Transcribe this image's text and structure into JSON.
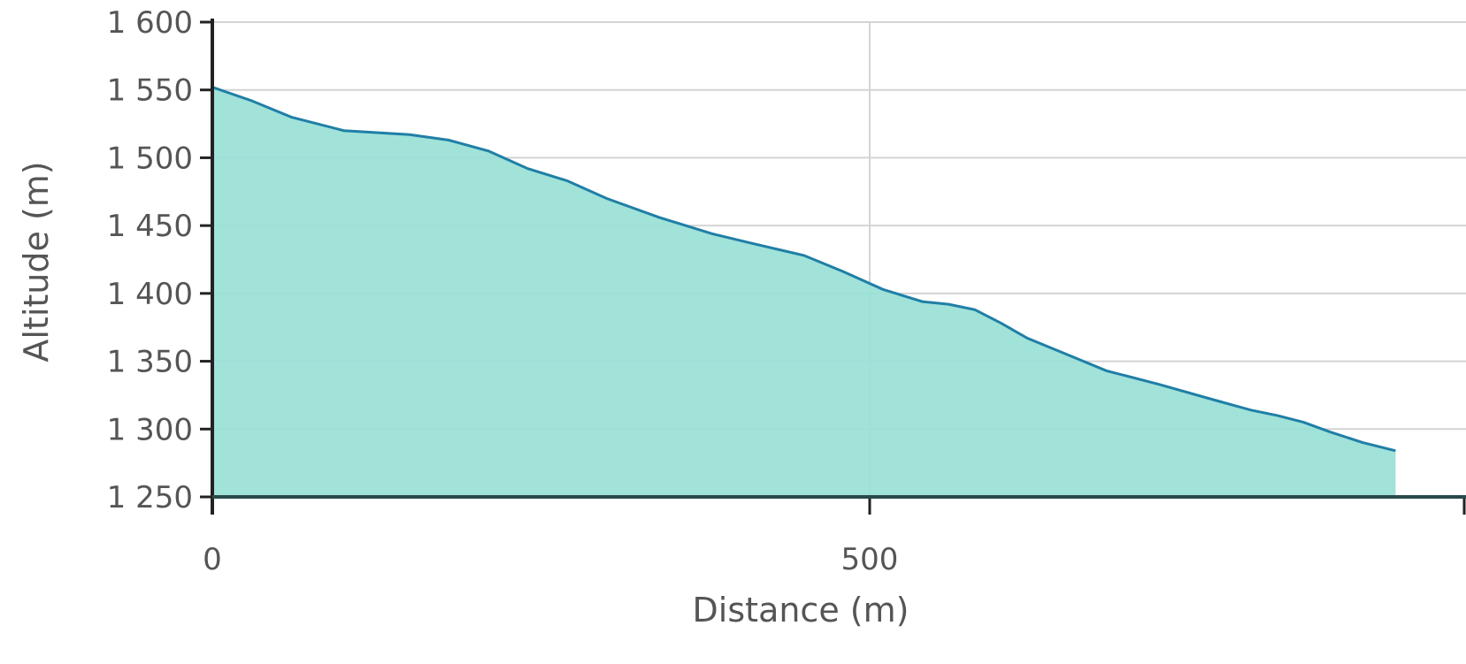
{
  "chart_data": {
    "type": "area",
    "xlabel": "Distance (m)",
    "ylabel": "Altitude (m)",
    "xlim": [
      0,
      900
    ],
    "ylim": [
      1250,
      1600
    ],
    "x_ticks": [
      0,
      500
    ],
    "x_tick_labels": [
      "0",
      "500"
    ],
    "y_ticks": [
      1250,
      1300,
      1350,
      1400,
      1450,
      1500,
      1550,
      1600
    ],
    "y_tick_labels": [
      "1 250",
      "1 300",
      "1 350",
      "1 400",
      "1 450",
      "1 500",
      "1 550",
      "1 600"
    ],
    "grid": true,
    "fill_color": "#99e0d6",
    "line_color": "#1f7fa6",
    "series": [
      {
        "x": [
          0,
          30,
          60,
          100,
          150,
          180,
          210,
          240,
          270,
          300,
          340,
          380,
          410,
          450,
          480,
          510,
          540,
          560,
          580,
          600,
          620,
          650,
          680,
          720,
          760,
          790,
          810,
          830,
          850,
          875,
          900
        ],
        "y": [
          1552,
          1542,
          1530,
          1520,
          1517,
          1513,
          1505,
          1492,
          1483,
          1470,
          1456,
          1444,
          1437,
          1428,
          1416,
          1403,
          1394,
          1392,
          1388,
          1378,
          1367,
          1355,
          1343,
          1333,
          1322,
          1314,
          1310,
          1305,
          1298,
          1290,
          1284
        ]
      }
    ]
  }
}
